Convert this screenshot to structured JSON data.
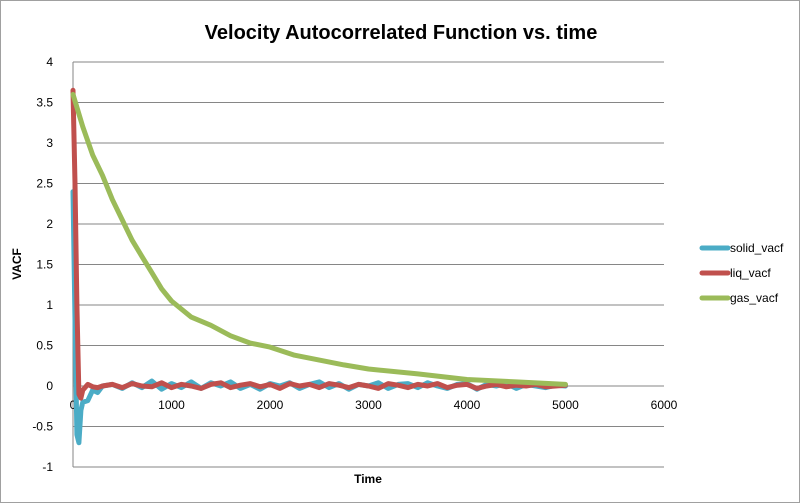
{
  "chart_data": {
    "type": "line",
    "title": "Velocity Autocorrelated Function vs. time",
    "xlabel": "Time",
    "ylabel": "VACF",
    "xlim": [
      0,
      6000
    ],
    "ylim": [
      -1,
      4
    ],
    "xticks": [
      "0",
      "1000",
      "2000",
      "3000",
      "4000",
      "5000",
      "6000"
    ],
    "yticks": [
      "-1",
      "-0.5",
      "0",
      "0.5",
      "1",
      "1.5",
      "2",
      "2.5",
      "3",
      "3.5",
      "4"
    ],
    "grid": "horizontal major",
    "legend": "right",
    "series": [
      {
        "name": "solid_vacf",
        "color": "#4bacc6",
        "x": [
          0,
          20,
          40,
          60,
          80,
          100,
          150,
          200,
          250,
          300,
          400,
          500,
          600,
          700,
          800,
          900,
          1000,
          1100,
          1200,
          1300,
          1400,
          1500,
          1600,
          1700,
          1800,
          1900,
          2000,
          2100,
          2200,
          2300,
          2400,
          2500,
          2600,
          2700,
          2800,
          2900,
          3000,
          3100,
          3200,
          3300,
          3400,
          3500,
          3600,
          3700,
          3800,
          3900,
          4000,
          4100,
          4200,
          4300,
          4400,
          4500,
          4600,
          4700,
          4800,
          4900,
          5000
        ],
        "y": [
          2.4,
          0.8,
          -0.6,
          -0.7,
          -0.3,
          -0.2,
          -0.18,
          -0.05,
          -0.08,
          0.0,
          0.02,
          -0.03,
          0.04,
          -0.02,
          0.06,
          -0.04,
          0.03,
          -0.02,
          0.05,
          -0.03,
          0.04,
          0.0,
          0.05,
          -0.03,
          0.02,
          -0.04,
          0.03,
          0.0,
          0.04,
          -0.03,
          0.02,
          0.05,
          -0.02,
          0.03,
          -0.04,
          0.02,
          0.0,
          0.04,
          -0.03,
          0.02,
          0.03,
          -0.02,
          0.04,
          0.0,
          -0.03,
          0.02,
          0.03,
          -0.04,
          0.02,
          0.0,
          0.03,
          -0.03,
          0.02,
          0.0,
          -0.02,
          0.01,
          0.0
        ]
      },
      {
        "name": "liq_vacf",
        "color": "#c0504d",
        "x": [
          0,
          20,
          40,
          60,
          80,
          100,
          150,
          200,
          250,
          300,
          400,
          500,
          600,
          700,
          800,
          900,
          1000,
          1100,
          1200,
          1300,
          1400,
          1500,
          1600,
          1700,
          1800,
          1900,
          2000,
          2100,
          2200,
          2300,
          2400,
          2500,
          2600,
          2700,
          2800,
          2900,
          3000,
          3100,
          3200,
          3300,
          3400,
          3500,
          3600,
          3700,
          3800,
          3900,
          4000,
          4100,
          4200,
          4300,
          4400,
          4500,
          4600,
          4700,
          4800,
          4900,
          5000
        ],
        "y": [
          3.65,
          2.5,
          1.0,
          -0.1,
          -0.15,
          -0.05,
          0.02,
          -0.01,
          -0.02,
          0.0,
          0.02,
          -0.02,
          0.03,
          0.0,
          -0.01,
          0.04,
          -0.02,
          0.02,
          0.0,
          -0.03,
          0.02,
          0.04,
          -0.02,
          0.01,
          0.03,
          -0.01,
          0.02,
          -0.03,
          0.03,
          0.0,
          0.02,
          -0.02,
          0.03,
          0.01,
          -0.02,
          0.02,
          0.0,
          -0.03,
          0.03,
          0.01,
          -0.02,
          0.02,
          0.0,
          0.03,
          -0.02,
          0.01,
          0.02,
          -0.03,
          0.0,
          0.02,
          -0.01,
          0.01,
          0.0,
          0.02,
          -0.01,
          0.0,
          0.01
        ]
      },
      {
        "name": "gas_vacf",
        "color": "#9bbb59",
        "x": [
          0,
          100,
          200,
          300,
          400,
          500,
          600,
          700,
          800,
          900,
          1000,
          1200,
          1400,
          1600,
          1800,
          2000,
          2250,
          2500,
          2750,
          3000,
          3500,
          4000,
          4500,
          5000
        ],
        "y": [
          3.6,
          3.2,
          2.85,
          2.6,
          2.3,
          2.05,
          1.8,
          1.6,
          1.4,
          1.2,
          1.05,
          0.85,
          0.75,
          0.62,
          0.53,
          0.48,
          0.38,
          0.32,
          0.26,
          0.21,
          0.15,
          0.08,
          0.05,
          0.02
        ]
      }
    ]
  }
}
